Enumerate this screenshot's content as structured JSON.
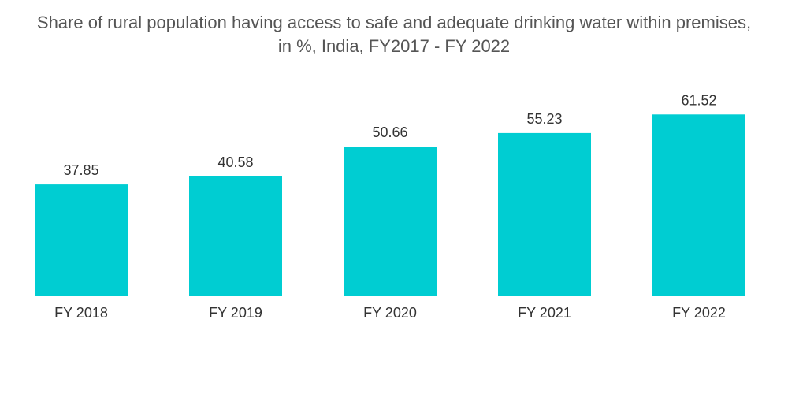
{
  "chart_data": {
    "type": "bar",
    "title_lines": [
      "Share of rural population having access to safe and adequate drinking water within premises,",
      "in %, India, FY2017 - FY 2022"
    ],
    "categories": [
      "FY 2018",
      "FY 2019",
      "FY 2020",
      "FY 2021",
      "FY 2022"
    ],
    "values": [
      37.85,
      40.58,
      50.66,
      55.23,
      61.52
    ],
    "value_labels": [
      "37.85",
      "40.58",
      "50.66",
      "55.23",
      "61.52"
    ],
    "xlabel": "",
    "ylabel": "",
    "ylim": [
      0,
      76
    ],
    "bar_color": "#00cdd2",
    "grid": false,
    "legend": "none"
  }
}
